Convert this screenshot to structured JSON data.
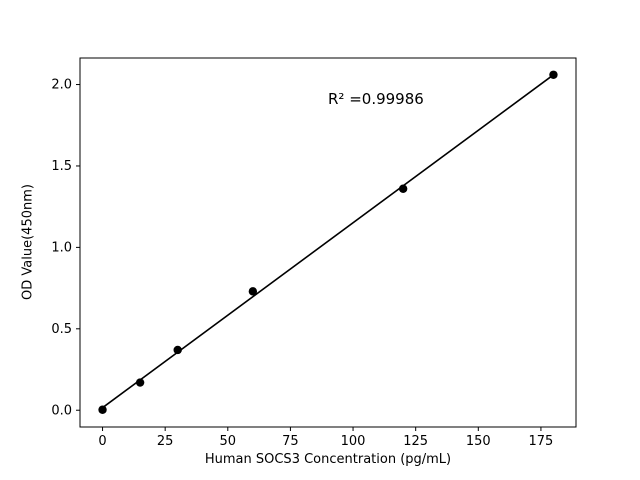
{
  "chart_data": {
    "type": "scatter",
    "title": "",
    "x": [
      0,
      15,
      30,
      60,
      120,
      180
    ],
    "y": [
      0.003,
      0.17,
      0.37,
      0.73,
      1.36,
      2.06
    ],
    "fit_line": true,
    "annotation": {
      "text": "R² =0.99986"
    },
    "xlabel": "Human SOCS3 Concentration (pg/mL)",
    "ylabel": "OD Value(450nm)",
    "xlim": [
      -9,
      189
    ],
    "ylim": [
      -0.103,
      2.163
    ],
    "xticks": [
      0,
      25,
      50,
      75,
      100,
      125,
      150,
      175
    ],
    "yticks": [
      0.0,
      0.5,
      1.0,
      1.5,
      2.0
    ],
    "grid": false,
    "legend_position": "none",
    "marker_color": "#000000",
    "line_color": "#000000",
    "background_color": "#ffffff"
  }
}
